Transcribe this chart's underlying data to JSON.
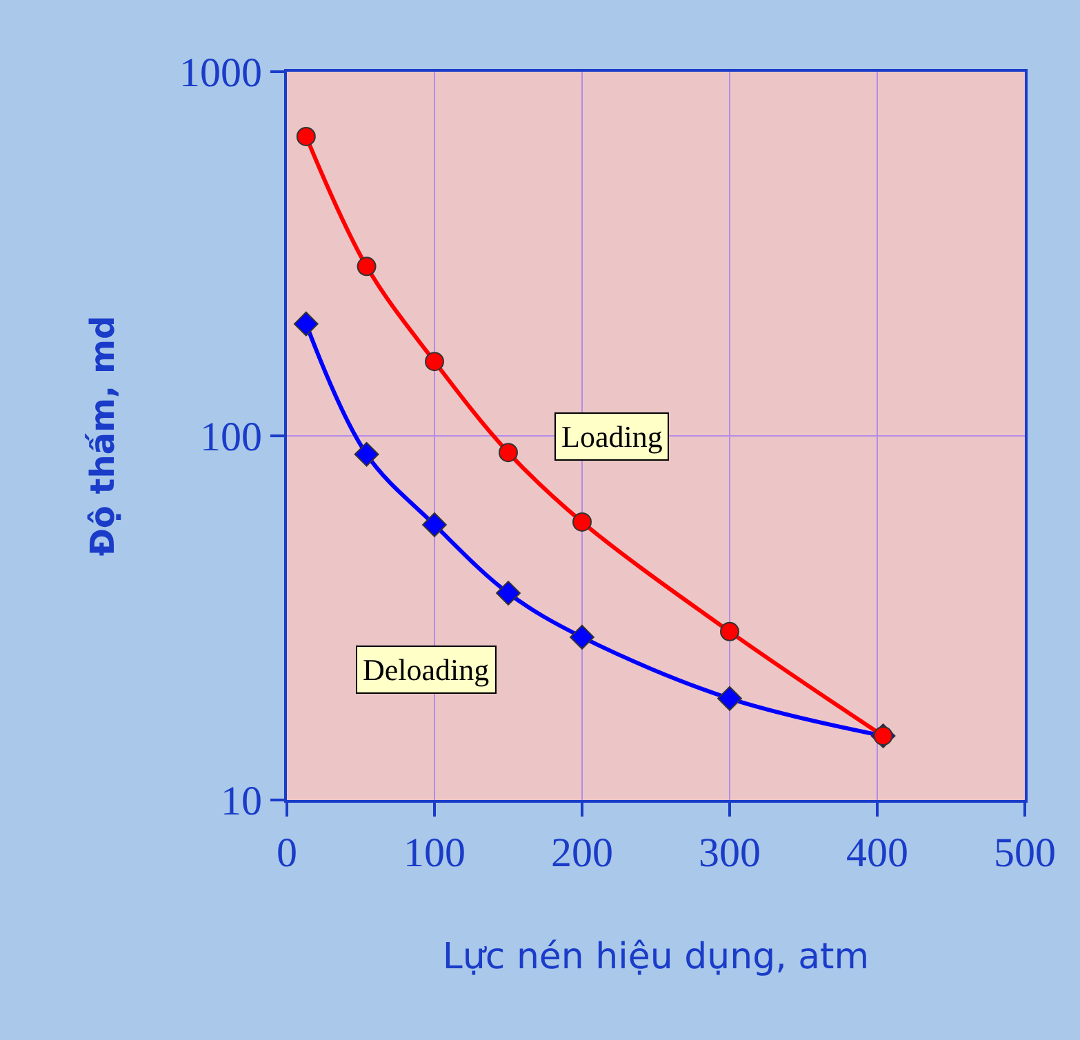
{
  "chart_data": {
    "type": "line",
    "xlabel": "Lực nén hiệu dụng, atm",
    "ylabel": "Độ thấm, md",
    "log": "y",
    "grid": true,
    "legend": false,
    "line_style": "solid",
    "xlim": [
      0,
      500
    ],
    "xticks": [
      0,
      100,
      200,
      300,
      400,
      500
    ],
    "ylim": [
      10,
      1000
    ],
    "yticks": [
      10,
      100,
      1000
    ],
    "series": [
      {
        "name": "Loading",
        "color": "#ff0000",
        "marker": "circle",
        "x": [
          13,
          54,
          100,
          150,
          200,
          300,
          404
        ],
        "values": [
          664,
          292,
          160,
          90,
          58,
          29,
          15
        ]
      },
      {
        "name": "Deloading",
        "color": "#0000ff",
        "marker": "diamond",
        "x": [
          13,
          54,
          100,
          150,
          200,
          300,
          404
        ],
        "values": [
          203,
          89,
          57,
          37,
          28,
          19,
          15
        ]
      }
    ]
  }
}
